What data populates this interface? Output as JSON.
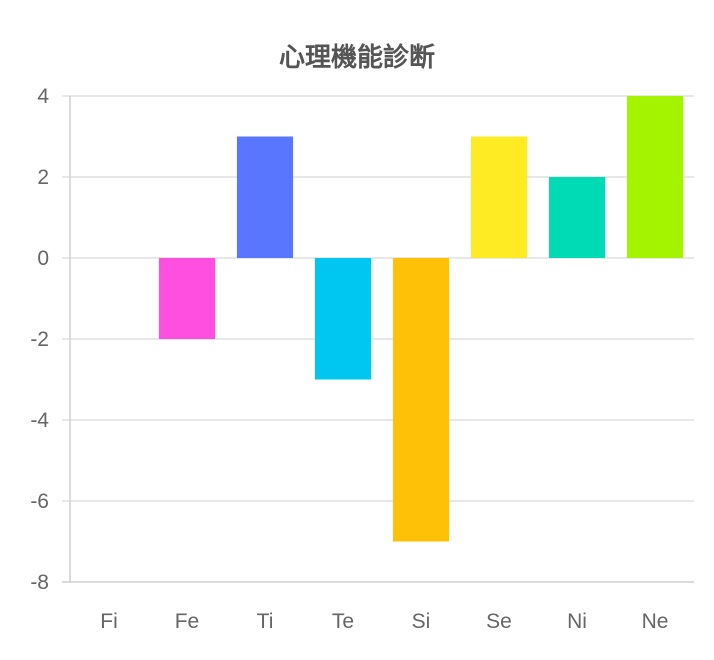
{
  "chart_data": {
    "type": "bar",
    "title": "心理機能診断",
    "categories": [
      "Fi",
      "Fe",
      "Ti",
      "Te",
      "Si",
      "Se",
      "Ni",
      "Ne"
    ],
    "values": [
      0,
      -2,
      3,
      -3,
      -7,
      3,
      2,
      4
    ],
    "colors": [
      "#ff6384",
      "#ff4fe0",
      "#5876ff",
      "#00c7f2",
      "#ffc107",
      "#ffeb24",
      "#00dab5",
      "#a4f400"
    ],
    "ylim": [
      -8,
      4
    ],
    "yticks": [
      "4",
      "2",
      "0",
      "-2",
      "-4",
      "-6",
      "-8"
    ],
    "grid": true,
    "legend": "none",
    "xlabel": "",
    "ylabel": ""
  }
}
